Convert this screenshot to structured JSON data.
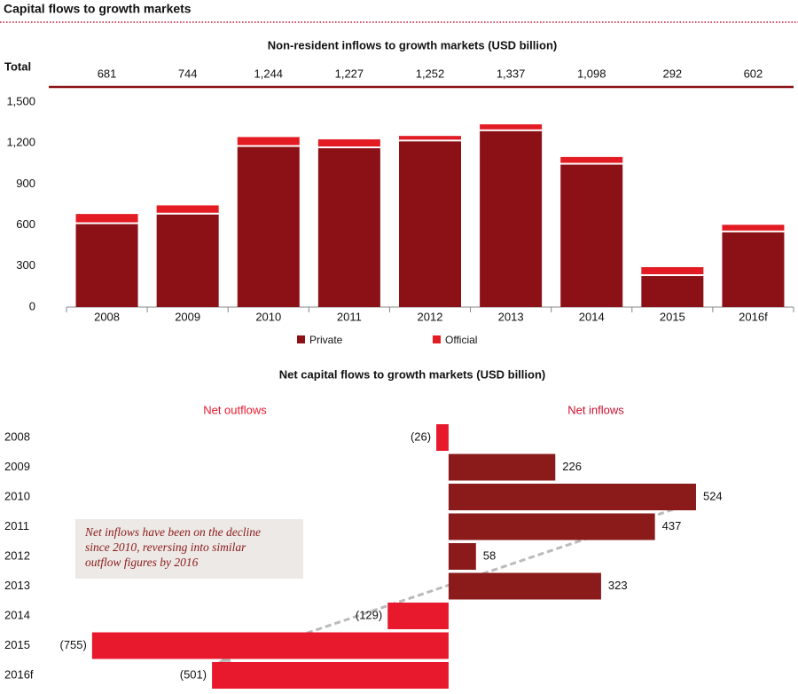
{
  "header": {
    "title": "Capital flows to growth markets"
  },
  "chart_data": [
    {
      "type": "bar",
      "stacked": true,
      "title": "Non-resident inflows to growth markets (USD billion)",
      "categories": [
        "2008",
        "2009",
        "2010",
        "2011",
        "2012",
        "2013",
        "2014",
        "2015",
        "2016f"
      ],
      "series": [
        {
          "name": "Private",
          "color": "#8b1116",
          "values": [
            620,
            690,
            1185,
            1175,
            1225,
            1300,
            1055,
            240,
            560
          ]
        },
        {
          "name": "Official",
          "color": "#e31b23",
          "values": [
            61,
            54,
            59,
            52,
            27,
            37,
            43,
            52,
            42
          ]
        }
      ],
      "totals": {
        "label": "Total",
        "values": [
          681,
          744,
          1244,
          1227,
          1252,
          1337,
          1098,
          292,
          602
        ],
        "value_labels": [
          "681",
          "744",
          "1,244",
          "1,227",
          "1,252",
          "1,337",
          "1,098",
          "292",
          "602"
        ]
      },
      "ylim": [
        0,
        1500
      ],
      "yticks": [
        0,
        300,
        600,
        900,
        {
          "value": 1200,
          "label": "1,200"
        },
        {
          "value": 1500,
          "label": "1,500"
        }
      ],
      "legend": "bottom"
    },
    {
      "type": "barh",
      "title": "Net capital flows to growth markets  (USD billion)",
      "negative_label": "Net outflows",
      "positive_label": "Net inflows",
      "categories": [
        "2008",
        "2009",
        "2010",
        "2011",
        "2012",
        "2013",
        "2014",
        "2015",
        "2016f"
      ],
      "values": [
        -26,
        226,
        524,
        437,
        58,
        323,
        -129,
        -755,
        -501
      ],
      "value_labels": [
        "(26)",
        "226",
        "524",
        "437",
        "58",
        "323",
        "(129)",
        "(755)",
        "(501)"
      ],
      "positive_color": "#8b1a1a",
      "negative_color": "#e8192c",
      "xlim": [
        -950,
        740
      ],
      "annotation": [
        "Net inflows have been on the decline",
        "since 2010, reversing into similar",
        "outflow figures by 2016"
      ]
    }
  ]
}
